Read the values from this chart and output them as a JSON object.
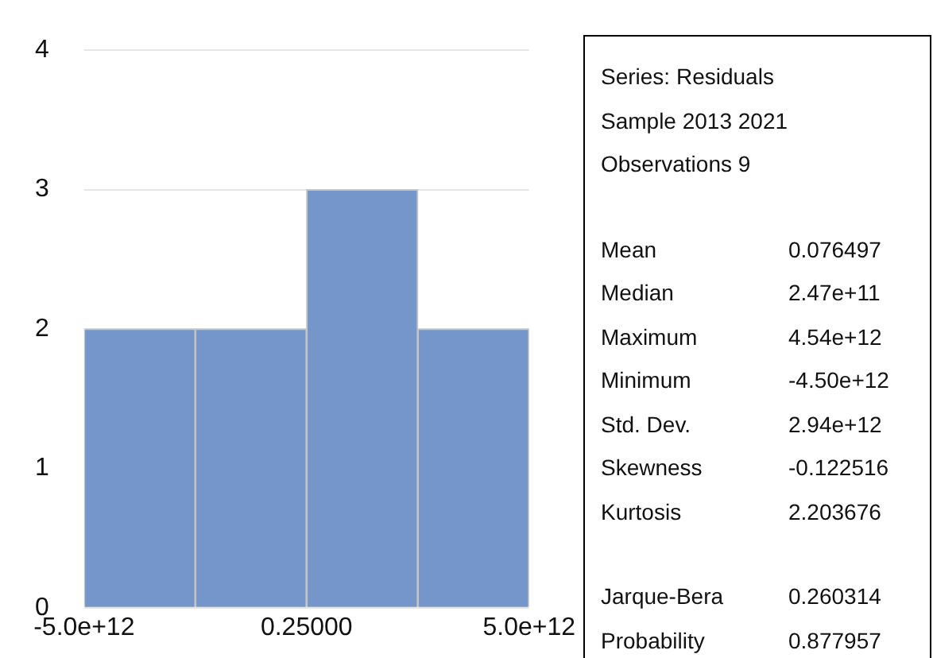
{
  "chart_data": {
    "type": "histogram",
    "bins": [
      -5000000000000,
      -2500000000000,
      0,
      2500000000000,
      5000000000000
    ],
    "values": [
      2,
      2,
      3,
      2
    ],
    "color": "#7596cb",
    "xlim": [
      -5000000000000,
      5000000000000
    ],
    "xticks": [
      {
        "value": -5000000000000,
        "label": "-5.0e+12"
      },
      {
        "value": 0.25,
        "label": "0.25000"
      },
      {
        "value": 5000000000000,
        "label": "5.0e+12"
      }
    ],
    "ylim": [
      0,
      4
    ],
    "yticks": [
      0,
      1,
      2,
      3,
      4
    ],
    "grid": "y",
    "legend": false,
    "annotations": [
      "Series: Residuals",
      "Sample 2013 2021",
      "Observations 9",
      "Mean 0.076497",
      "Median 2.47e+11",
      "Maximum 4.54e+12",
      "Minimum -4.50e+12",
      "Std. Dev. 2.94e+12",
      "Skewness -0.122516",
      "Kurtosis 2.203676",
      "Jarque-Bera 0.260314",
      "Probability 0.877957"
    ]
  }
}
